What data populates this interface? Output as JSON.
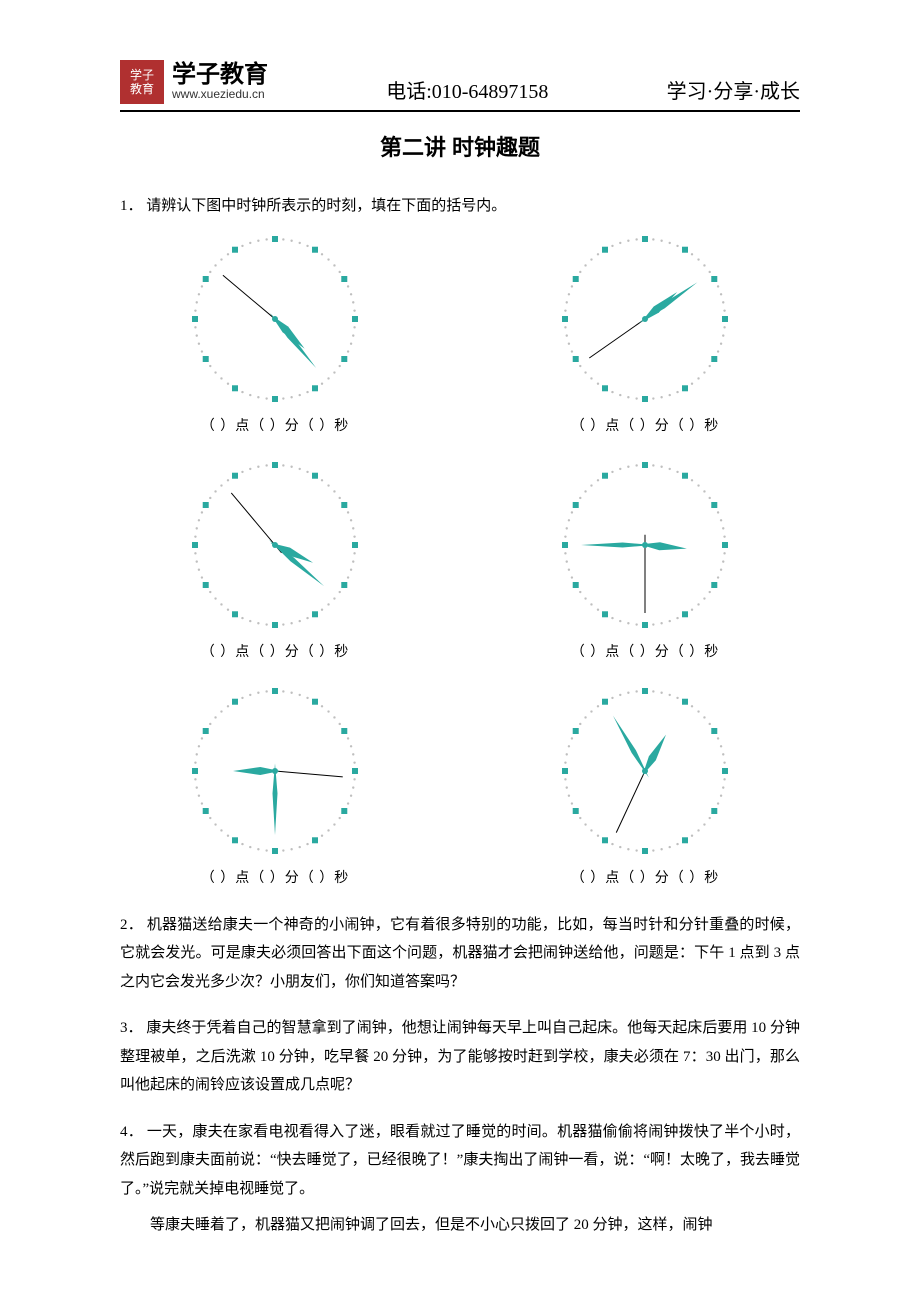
{
  "header": {
    "logo_lines": [
      "学子",
      "教育"
    ],
    "brand_cn": "学子教育",
    "brand_url": "www.xueziedu.cn",
    "phone": "电话:010-64897158",
    "slogan": "学习·分享·成长"
  },
  "title": "第二讲  时钟趣题",
  "q1_intro": "1．  请辨认下图中时钟所表示的时刻，填在下面的括号内。",
  "clock_caption": "（  ）点（  ）分（  ）秒",
  "clock_style": {
    "radius": 80,
    "tick_color": "#2aa9a0",
    "dot_color": "#bfbfbf",
    "hour_hand_color": "#2aa9a0",
    "minute_hand_color": "#2aa9a0",
    "second_hand_color": "#000000",
    "hour_len": 42,
    "minute_len": 64,
    "second_len": 68,
    "hour_width": 8,
    "minute_width": 5,
    "second_width": 1
  },
  "clocks": [
    {
      "hour_angle": 135,
      "minute_angle": 140,
      "second_angle": 310
    },
    {
      "hour_angle": 50,
      "minute_angle": 55,
      "second_angle": 235
    },
    {
      "hour_angle": 115,
      "minute_angle": 130,
      "second_angle": 320
    },
    {
      "hour_angle": 95,
      "minute_angle": 270,
      "second_angle": 180
    },
    {
      "hour_angle": 270,
      "minute_angle": 180,
      "second_angle": 95
    },
    {
      "hour_angle": 30,
      "minute_angle": 330,
      "second_angle": 205
    }
  ],
  "q2": "2．  机器猫送给康夫一个神奇的小闹钟，它有着很多特别的功能，比如，每当时针和分针重叠的时候，它就会发光。可是康夫必须回答出下面这个问题，机器猫才会把闹钟送给他，问题是：下午 1 点到 3 点之内它会发光多少次？小朋友们，你们知道答案吗？",
  "q3": "3．  康夫终于凭着自己的智慧拿到了闹钟，他想让闹钟每天早上叫自己起床。他每天起床后要用 10 分钟整理被单，之后洗漱 10 分钟，吃早餐 20 分钟，为了能够按时赶到学校，康夫必须在 7：30 出门，那么叫他起床的闹铃应该设置成几点呢？",
  "q4_p1": "4．  一天，康夫在家看电视看得入了迷，眼看就过了睡觉的时间。机器猫偷偷将闹钟拨快了半个小时，然后跑到康夫面前说：“快去睡觉了，已经很晚了！”康夫掏出了闹钟一看，说：“啊！太晚了，我去睡觉了。”说完就关掉电视睡觉了。",
  "q4_p2": "等康夫睡着了，机器猫又把闹钟调了回去，但是不小心只拨回了 20 分钟，这样，闹钟"
}
